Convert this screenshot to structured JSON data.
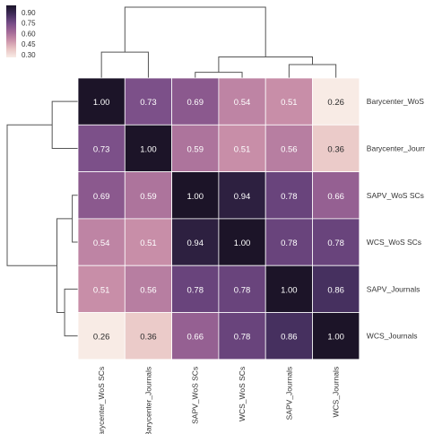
{
  "chart_data": {
    "type": "heatmap",
    "title": "",
    "xlabel": "",
    "ylabel": "",
    "row_labels": [
      "Barycenter_WoS SCs",
      "Barycenter_Journals",
      "SAPV_WoS SCs",
      "WCS_WoS SCs",
      "SAPV_Journals",
      "WCS_Journals"
    ],
    "col_labels": [
      "Barycenter_WoS SCs",
      "Barycenter_Journals",
      "SAPV_WoS SCs",
      "WCS_WoS SCs",
      "SAPV_Journals",
      "WCS_Journals"
    ],
    "values": [
      [
        1.0,
        0.73,
        0.69,
        0.54,
        0.51,
        0.26
      ],
      [
        0.73,
        1.0,
        0.59,
        0.51,
        0.56,
        0.36
      ],
      [
        0.69,
        0.59,
        1.0,
        0.94,
        0.78,
        0.66
      ],
      [
        0.54,
        0.51,
        0.94,
        1.0,
        0.78,
        0.78
      ],
      [
        0.51,
        0.56,
        0.78,
        0.78,
        1.0,
        0.86
      ],
      [
        0.26,
        0.36,
        0.66,
        0.78,
        0.86,
        1.0
      ]
    ],
    "cell_labels": [
      [
        "1.00",
        "0.73",
        "0.69",
        "0.54",
        "0.51",
        "0.26"
      ],
      [
        "0.73",
        "1.00",
        "0.59",
        "0.51",
        "0.56",
        "0.36"
      ],
      [
        "0.69",
        "0.59",
        "1.00",
        "0.94",
        "0.78",
        "0.66"
      ],
      [
        "0.54",
        "0.51",
        "0.94",
        "1.00",
        "0.78",
        "0.78"
      ],
      [
        "0.51",
        "0.56",
        "0.78",
        "0.78",
        "1.00",
        "0.86"
      ],
      [
        "0.26",
        "0.36",
        "0.66",
        "0.78",
        "0.86",
        "1.00"
      ]
    ],
    "colorbar": {
      "min": 0.26,
      "max": 1.0,
      "ticks": [
        0.9,
        0.75,
        0.6,
        0.45,
        0.3
      ],
      "tick_labels": [
        "0.90",
        "0.75",
        "0.60",
        "0.45",
        "0.30"
      ],
      "position": "top-left"
    },
    "colormap": [
      "#f8ebe5",
      "#e8c3c3",
      "#c98fa9",
      "#a06796",
      "#744b86",
      "#3f2c59",
      "#1c1428"
    ],
    "grid": false,
    "legend": "colorbar top-left",
    "dendrogram": {
      "rows": true,
      "cols": true,
      "merges": [
        {
          "a": "WCS_WoS SCs",
          "b": "SAPV_WoS SCs",
          "similarity": 0.94
        },
        {
          "a": "SAPV_Journals",
          "b": "WCS_Journals",
          "similarity": 0.86
        },
        {
          "a": "cluster_SAPV_WCS_WoS",
          "b": "cluster_SAPV_WCS_Journals",
          "similarity": 0.78
        },
        {
          "a": "Barycenter_WoS SCs",
          "b": "Barycenter_Journals",
          "similarity": 0.73
        },
        {
          "a": "cluster_Barycenter",
          "b": "cluster_SAPV_WCS",
          "similarity": 0.26
        }
      ]
    }
  }
}
